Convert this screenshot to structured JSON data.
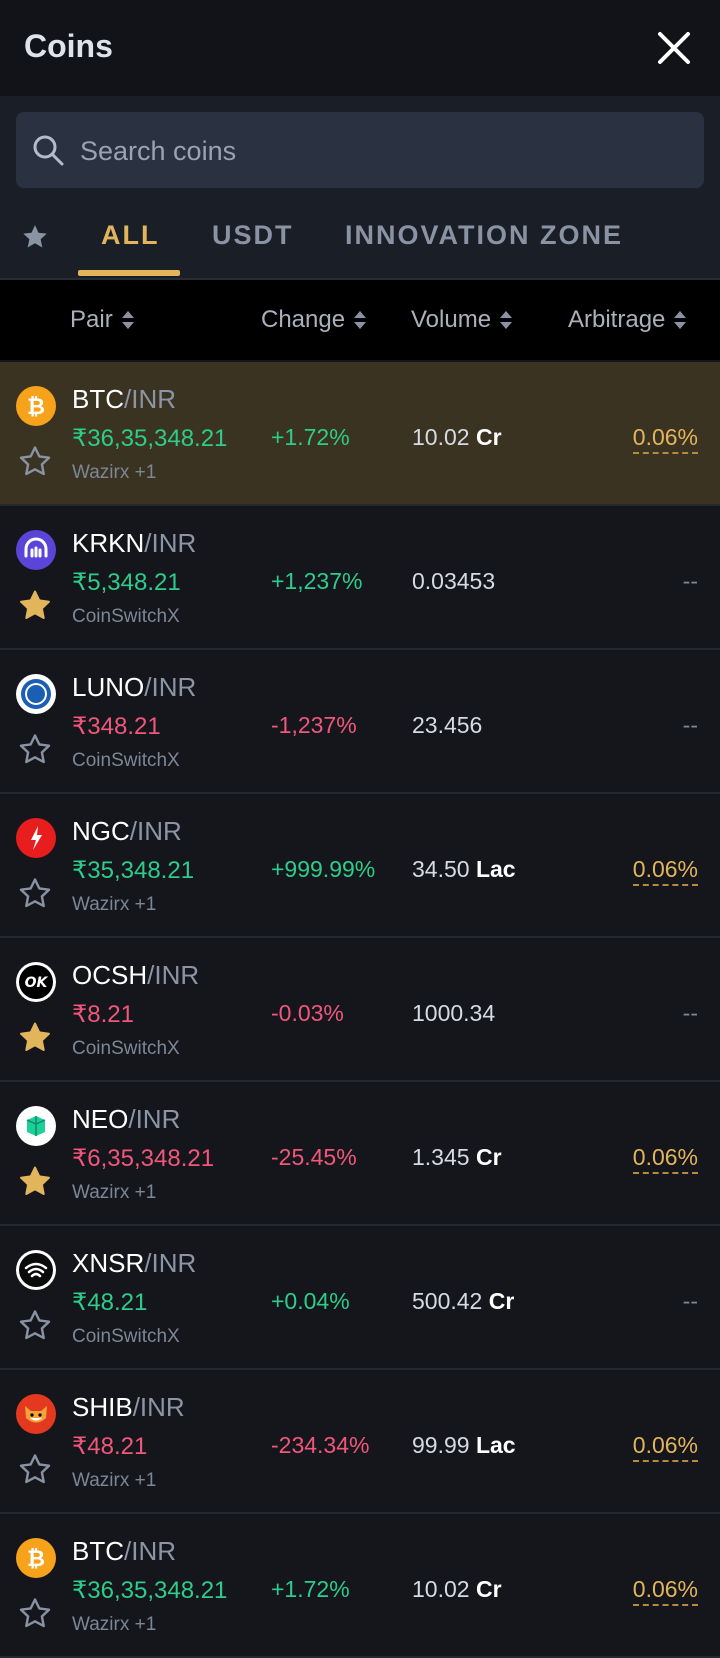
{
  "header": {
    "title": "Coins"
  },
  "search": {
    "placeholder": "Search coins"
  },
  "tabs": [
    {
      "label": "ALL",
      "active": true
    },
    {
      "label": "USDT",
      "active": false
    },
    {
      "label": "INNOVATION ZONE",
      "active": false
    }
  ],
  "columns": {
    "pair": "Pair",
    "change": "Change",
    "volume": "Volume",
    "arbitrage": "Arbitrage"
  },
  "colors": {
    "accent": "#e2b45c",
    "up": "#2ecc8a",
    "down": "#f0577a",
    "background": "#14161c"
  },
  "rows": [
    {
      "base": "BTC",
      "quote": "/INR",
      "price": "₹36,35,348.21",
      "direction": "up",
      "exchange": "Wazirx +1",
      "change": "+1.72%",
      "volume": "10.02",
      "volume_unit": "Cr",
      "arbitrage": "0.06%",
      "favorite": false,
      "icon": "bitcoin-icon",
      "highlighted": true
    },
    {
      "base": "KRKN",
      "quote": "/INR",
      "price": "₹5,348.21",
      "direction": "up",
      "exchange": "CoinSwitchX",
      "change": "+1,237%",
      "volume": "0.03453",
      "volume_unit": "",
      "arbitrage": "--",
      "favorite": true,
      "icon": "kraken-icon",
      "highlighted": false
    },
    {
      "base": "LUNO",
      "quote": "/INR",
      "price": "₹348.21",
      "direction": "down",
      "exchange": "CoinSwitchX",
      "change": "-1,237%",
      "volume": "23.456",
      "volume_unit": "",
      "arbitrage": "--",
      "favorite": false,
      "icon": "luno-icon",
      "highlighted": false
    },
    {
      "base": "NGC",
      "quote": "/INR",
      "price": "₹35,348.21",
      "direction": "up",
      "exchange": "Wazirx +1",
      "change": "+999.99%",
      "volume": "34.50",
      "volume_unit": "Lac",
      "arbitrage": "0.06%",
      "favorite": false,
      "icon": "ngc-icon",
      "highlighted": false
    },
    {
      "base": "OCSH",
      "quote": "/INR",
      "price": "₹8.21",
      "direction": "down",
      "exchange": "CoinSwitchX",
      "change": "-0.03%",
      "volume": "1000.34",
      "volume_unit": "",
      "arbitrage": "--",
      "favorite": true,
      "icon": "ocsh-icon",
      "highlighted": false
    },
    {
      "base": "NEO",
      "quote": "/INR",
      "price": "₹6,35,348.21",
      "direction": "down",
      "exchange": "Wazirx +1",
      "change": "-25.45%",
      "volume": "1.345",
      "volume_unit": "Cr",
      "arbitrage": "0.06%",
      "favorite": true,
      "icon": "neo-icon",
      "highlighted": false
    },
    {
      "base": "XNSR",
      "quote": "/INR",
      "price": "₹48.21",
      "direction": "up",
      "exchange": "CoinSwitchX",
      "change": "+0.04%",
      "volume": "500.42",
      "volume_unit": "Cr",
      "arbitrage": "--",
      "favorite": false,
      "icon": "xnsr-icon",
      "highlighted": false
    },
    {
      "base": "SHIB",
      "quote": "/INR",
      "price": "₹48.21",
      "direction": "down",
      "exchange": "Wazirx +1",
      "change": "-234.34%",
      "volume": "99.99",
      "volume_unit": "Lac",
      "arbitrage": "0.06%",
      "favorite": false,
      "icon": "shiba-icon",
      "highlighted": false
    },
    {
      "base": "BTC",
      "quote": "/INR",
      "price": "₹36,35,348.21",
      "direction": "up",
      "exchange": "Wazirx +1",
      "change": "+1.72%",
      "volume": "10.02",
      "volume_unit": "Cr",
      "arbitrage": "0.06%",
      "favorite": false,
      "icon": "bitcoin-icon",
      "highlighted": false
    }
  ]
}
